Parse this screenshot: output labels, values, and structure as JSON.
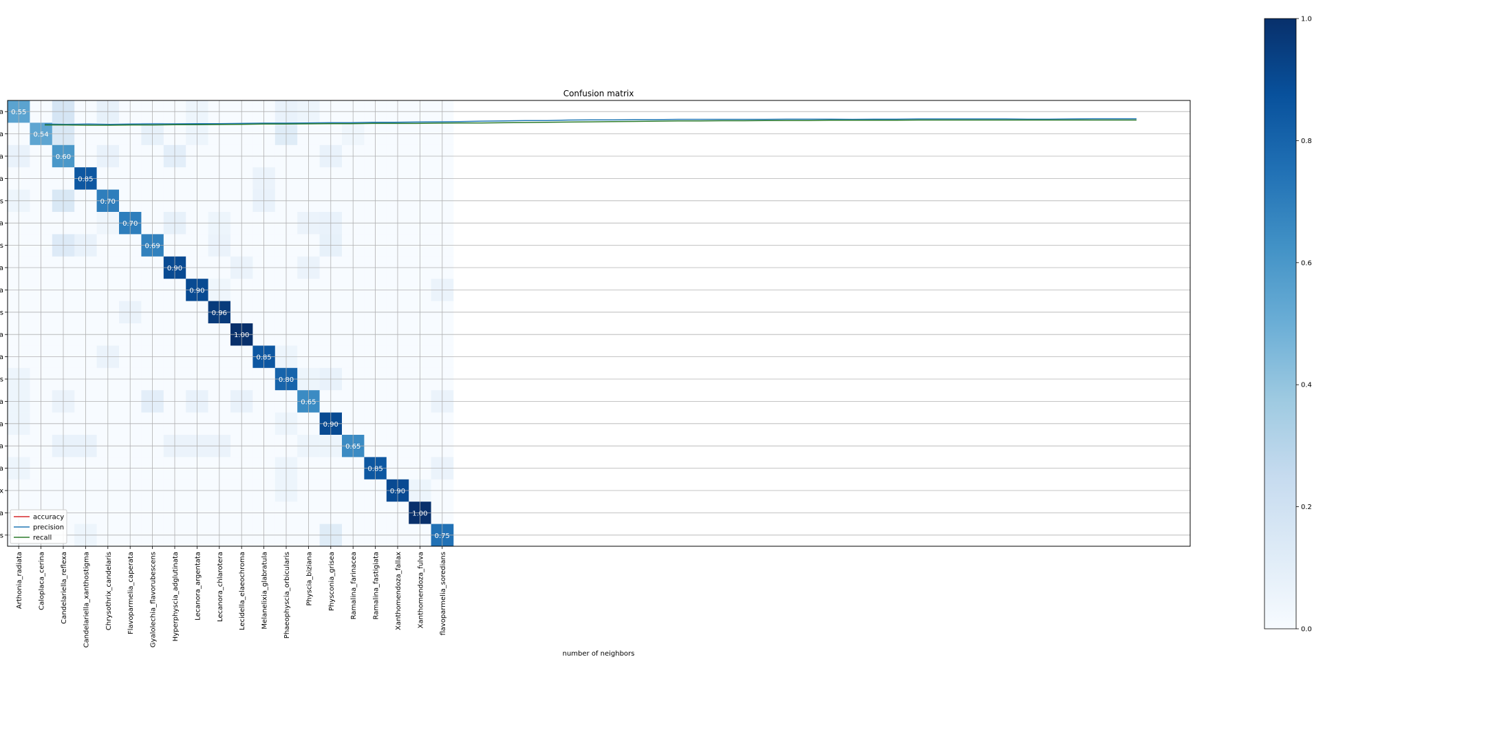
{
  "chart_data": {
    "type": "heatmap",
    "title": "Confusion matrix",
    "xlabel": "number of neighbors",
    "ylabel": "",
    "categories": [
      "Arthonia_radiata",
      "Caloplaca_cerina",
      "Candelariella_reflexa",
      "Candelariella_xanthostigma",
      "Chrysothrix_candelaris",
      "Flavoparmelia_caperata",
      "Gyalolechia_flavorubescens",
      "Hyperphyscia_adglutinata",
      "Lecanora_argentata",
      "Lecanora_chlarotera",
      "Lecidella_elaeochroma",
      "Melanelixia_glabratula",
      "Phaeophyscia_orbicularis",
      "Physcia_biziana",
      "Physconia_grisea",
      "Ramalina_farinacea",
      "Ramalina_fastigiata",
      "Xanthomendoza_fallax",
      "Xanthomendoza_fulva",
      "flavoparmelia_soredians"
    ],
    "row_tick_labels": [
      "a",
      "a",
      "a",
      "a",
      "s",
      "a",
      "s",
      "a",
      "a",
      "s",
      "a",
      "a",
      "s",
      "a",
      "a",
      "a",
      "a",
      "x",
      "a",
      "s"
    ],
    "diagonal_labels": [
      "0.55",
      "0.54",
      "0.60",
      "0.85",
      "0.70",
      "0.70",
      "0.69",
      "0.90",
      "0.90",
      "0.96",
      "1.00",
      "0.85",
      "0.80",
      "0.65",
      "0.90",
      "0.65",
      "0.85",
      "0.90",
      "1.00",
      "0.75"
    ],
    "diagonal": [
      0.55,
      0.54,
      0.6,
      0.85,
      0.7,
      0.7,
      0.69,
      0.9,
      0.9,
      0.96,
      1.0,
      0.85,
      0.8,
      0.65,
      0.9,
      0.65,
      0.85,
      0.9,
      1.0,
      0.75
    ],
    "off_diagonal": [
      {
        "row": 0,
        "col": 2,
        "value": 0.17
      },
      {
        "row": 0,
        "col": 4,
        "value": 0.08
      },
      {
        "row": 0,
        "col": 8,
        "value": 0.05
      },
      {
        "row": 0,
        "col": 12,
        "value": 0.07
      },
      {
        "row": 0,
        "col": 13,
        "value": 0.05
      },
      {
        "row": 1,
        "col": 2,
        "value": 0.15
      },
      {
        "row": 1,
        "col": 6,
        "value": 0.08
      },
      {
        "row": 1,
        "col": 8,
        "value": 0.05
      },
      {
        "row": 1,
        "col": 12,
        "value": 0.12
      },
      {
        "row": 1,
        "col": 15,
        "value": 0.04
      },
      {
        "row": 2,
        "col": 0,
        "value": 0.07
      },
      {
        "row": 2,
        "col": 4,
        "value": 0.07
      },
      {
        "row": 2,
        "col": 7,
        "value": 0.1
      },
      {
        "row": 2,
        "col": 14,
        "value": 0.07
      },
      {
        "row": 3,
        "col": 11,
        "value": 0.06
      },
      {
        "row": 4,
        "col": 0,
        "value": 0.05
      },
      {
        "row": 4,
        "col": 2,
        "value": 0.15
      },
      {
        "row": 4,
        "col": 11,
        "value": 0.07
      },
      {
        "row": 5,
        "col": 4,
        "value": 0.04
      },
      {
        "row": 5,
        "col": 7,
        "value": 0.08
      },
      {
        "row": 5,
        "col": 9,
        "value": 0.05
      },
      {
        "row": 5,
        "col": 13,
        "value": 0.06
      },
      {
        "row": 5,
        "col": 14,
        "value": 0.07
      },
      {
        "row": 6,
        "col": 2,
        "value": 0.13
      },
      {
        "row": 6,
        "col": 3,
        "value": 0.07
      },
      {
        "row": 6,
        "col": 9,
        "value": 0.06
      },
      {
        "row": 6,
        "col": 14,
        "value": 0.08
      },
      {
        "row": 7,
        "col": 10,
        "value": 0.06
      },
      {
        "row": 7,
        "col": 13,
        "value": 0.06
      },
      {
        "row": 8,
        "col": 9,
        "value": 0.04
      },
      {
        "row": 8,
        "col": 19,
        "value": 0.06
      },
      {
        "row": 9,
        "col": 5,
        "value": 0.06
      },
      {
        "row": 11,
        "col": 4,
        "value": 0.06
      },
      {
        "row": 11,
        "col": 12,
        "value": 0.05
      },
      {
        "row": 12,
        "col": 0,
        "value": 0.05
      },
      {
        "row": 12,
        "col": 13,
        "value": 0.05
      },
      {
        "row": 12,
        "col": 14,
        "value": 0.07
      },
      {
        "row": 13,
        "col": 0,
        "value": 0.05
      },
      {
        "row": 13,
        "col": 2,
        "value": 0.06
      },
      {
        "row": 13,
        "col": 6,
        "value": 0.1
      },
      {
        "row": 13,
        "col": 8,
        "value": 0.07
      },
      {
        "row": 13,
        "col": 10,
        "value": 0.07
      },
      {
        "row": 13,
        "col": 19,
        "value": 0.06
      },
      {
        "row": 14,
        "col": 0,
        "value": 0.05
      },
      {
        "row": 14,
        "col": 12,
        "value": 0.05
      },
      {
        "row": 15,
        "col": 2,
        "value": 0.07
      },
      {
        "row": 15,
        "col": 3,
        "value": 0.07
      },
      {
        "row": 15,
        "col": 7,
        "value": 0.06
      },
      {
        "row": 15,
        "col": 8,
        "value": 0.06
      },
      {
        "row": 15,
        "col": 9,
        "value": 0.06
      },
      {
        "row": 15,
        "col": 13,
        "value": 0.05
      },
      {
        "row": 15,
        "col": 14,
        "value": 0.05
      },
      {
        "row": 16,
        "col": 0,
        "value": 0.05
      },
      {
        "row": 16,
        "col": 12,
        "value": 0.05
      },
      {
        "row": 16,
        "col": 19,
        "value": 0.06
      },
      {
        "row": 17,
        "col": 12,
        "value": 0.05
      },
      {
        "row": 17,
        "col": 18,
        "value": 0.05
      },
      {
        "row": 19,
        "col": 3,
        "value": 0.05
      },
      {
        "row": 19,
        "col": 14,
        "value": 0.12
      }
    ],
    "colormap": "Blues",
    "colorbar": {
      "min": 0.0,
      "max": 1.0,
      "tick_labels": [
        "0.0",
        "0.2",
        "0.4",
        "0.6",
        "0.8",
        "1.0"
      ]
    },
    "grid": true,
    "legend": {
      "placement": "lower-left",
      "entries": [
        "accuracy",
        "precision",
        "recall"
      ]
    },
    "overlay_lines": {
      "x_range": [
        0,
        51
      ],
      "y_range": [
        0,
        20
      ],
      "series": [
        {
          "name": "accuracy",
          "color": "#d62728",
          "values": []
        },
        {
          "name": "precision",
          "color": "#1f77b4",
          "values": [
            18.94,
            18.93,
            18.94,
            18.93,
            18.94,
            18.95,
            18.95,
            18.96,
            18.96,
            18.97,
            18.98,
            18.98,
            18.99,
            19.0,
            19.0,
            19.02,
            19.02,
            19.03,
            19.04,
            19.05,
            19.07,
            19.08,
            19.1,
            19.1,
            19.12,
            19.13,
            19.13,
            19.14,
            19.14,
            19.15,
            19.15,
            19.15,
            19.15,
            19.15,
            19.16,
            19.16,
            19.16,
            19.15,
            19.16,
            19.16,
            19.17,
            19.17,
            19.17,
            19.17,
            19.17,
            19.16,
            19.16,
            19.17,
            19.18,
            19.18,
            19.18
          ]
        },
        {
          "name": "recall",
          "color": "#2a7a2a",
          "values": [
            18.9,
            18.9,
            18.89,
            18.89,
            18.9,
            18.9,
            18.91,
            18.91,
            18.92,
            18.93,
            18.94,
            18.94,
            18.95,
            18.96,
            18.96,
            18.97,
            18.97,
            18.97,
            18.98,
            18.99,
            18.99,
            19.0,
            19.01,
            19.02,
            19.03,
            19.04,
            19.05,
            19.06,
            19.07,
            19.08,
            19.08,
            19.09,
            19.09,
            19.1,
            19.1,
            19.1,
            19.11,
            19.11,
            19.11,
            19.11,
            19.12,
            19.12,
            19.12,
            19.12,
            19.12,
            19.12,
            19.12,
            19.12,
            19.12,
            19.12,
            19.12
          ]
        }
      ]
    }
  }
}
